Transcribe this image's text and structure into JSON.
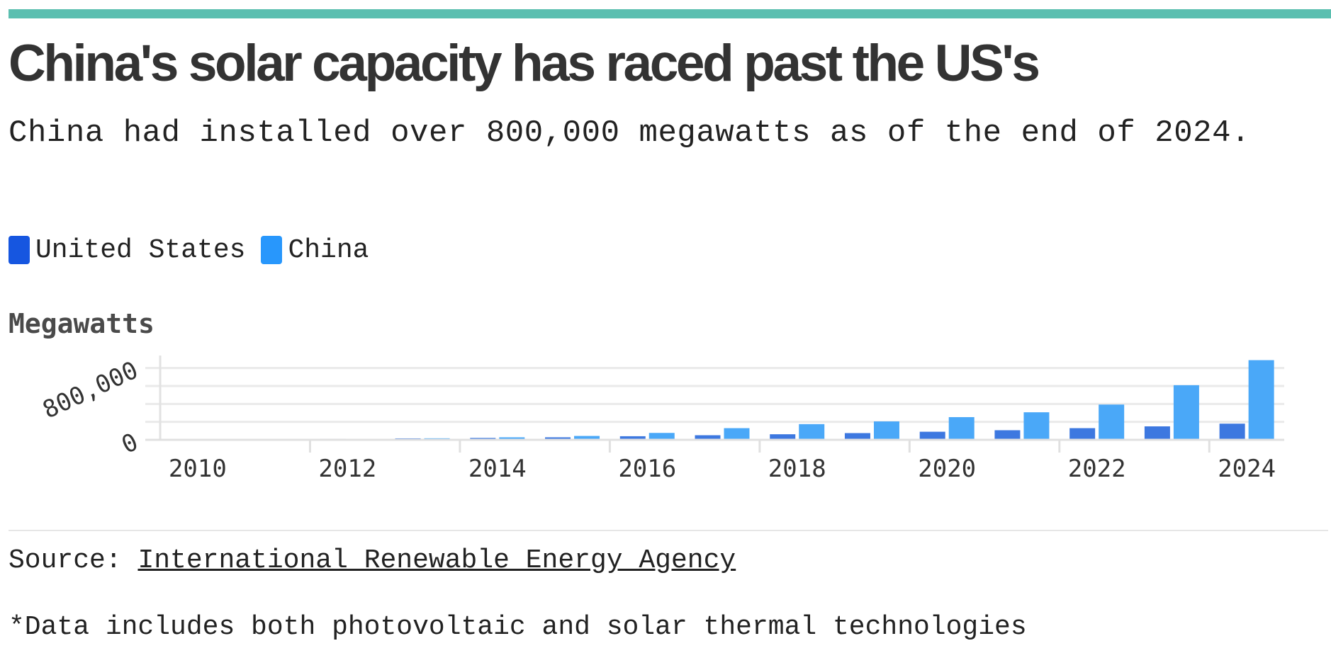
{
  "header": {
    "title": "China's solar capacity has raced past the US's",
    "subtitle": "China had installed over 800,000 megawatts as of the end of 2024."
  },
  "legend": [
    {
      "label": "United States",
      "color": "#1656e0"
    },
    {
      "label": "China",
      "color": "#2897fc"
    }
  ],
  "chart_data": {
    "type": "bar",
    "title": "China's solar capacity has raced past the US's",
    "subtitle": "China had installed over 800,000 megawatts as of the end of 2024.",
    "ylabel": "Megawatts",
    "xlabel": "",
    "categories": [
      "2010",
      "2011",
      "2012",
      "2013",
      "2014",
      "2015",
      "2016",
      "2017",
      "2018",
      "2019",
      "2020",
      "2021",
      "2022",
      "2023",
      "2024"
    ],
    "x_tick_labels": [
      "2010",
      "2012",
      "2014",
      "2016",
      "2018",
      "2020",
      "2022",
      "2024"
    ],
    "y_tick_labels": [
      "0",
      "800,000"
    ],
    "y_ticks": [
      0,
      800000
    ],
    "ylim": [
      0,
      900000
    ],
    "gridlines": [
      0,
      200000,
      400000,
      600000,
      800000
    ],
    "series": [
      {
        "name": "United States",
        "color": "#3d78e0",
        "values": [
          3000,
          6000,
          12000,
          16000,
          21000,
          28000,
          40000,
          51000,
          62000,
          75000,
          90000,
          107000,
          130000,
          150000,
          180000
        ]
      },
      {
        "name": "China",
        "color": "#4aa8f8",
        "values": [
          1000,
          3000,
          7000,
          17000,
          28000,
          43000,
          77000,
          130000,
          175000,
          205000,
          253000,
          307000,
          393000,
          609000,
          888000
        ]
      }
    ],
    "legend_position": "top-left",
    "grid": true
  },
  "source": {
    "prefix": "Source: ",
    "link_text": "International Renewable Energy Agency"
  },
  "footnote": "*Data includes both photovoltaic and solar thermal technologies"
}
